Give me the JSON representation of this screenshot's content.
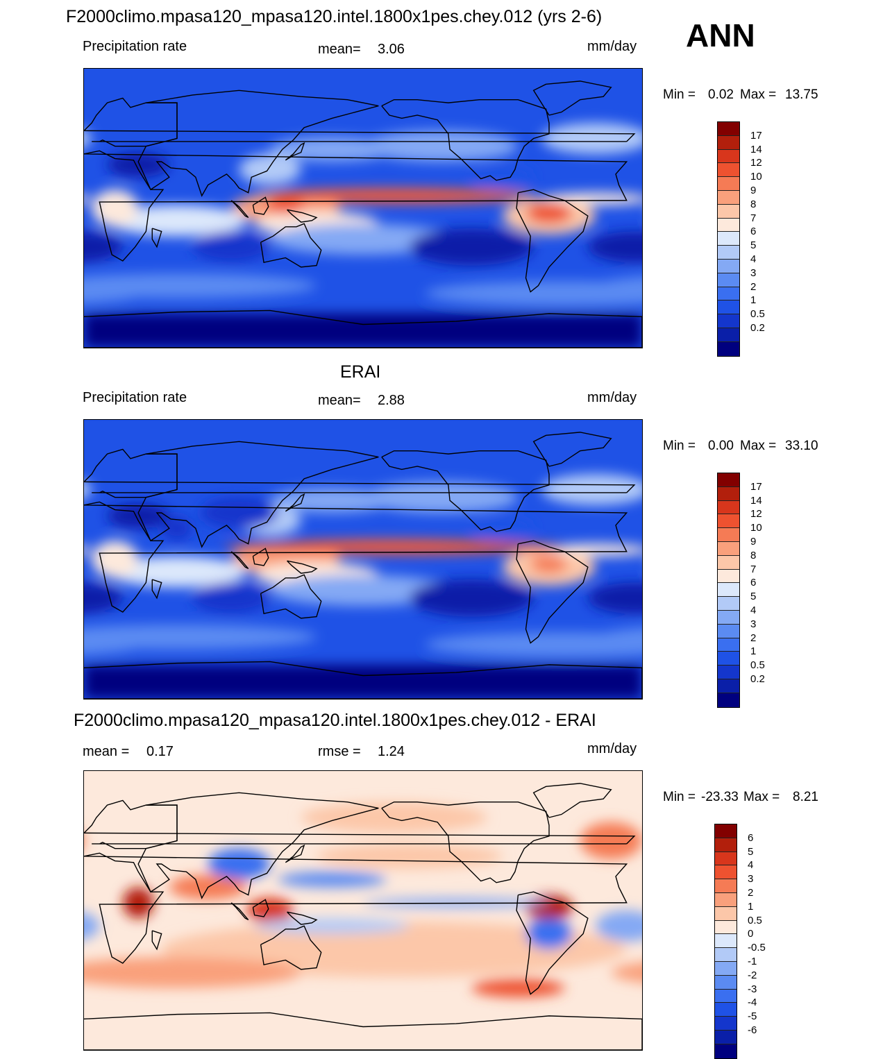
{
  "header": {
    "title": "F2000climo.mpasa120_mpasa120.intel.1800x1pes.chey.012 (yrs 2-6)",
    "season": "ANN"
  },
  "palettes": {
    "abs": [
      "#00007f",
      "#0a1fa8",
      "#1436cc",
      "#1f52e6",
      "#3a6ff0",
      "#5b8bf2",
      "#84a9f4",
      "#b2caf7",
      "#dce8fb",
      "#fde9dc",
      "#fcc7a9",
      "#f9a07c",
      "#f57b55",
      "#ee5230",
      "#d8361c",
      "#b21f0c",
      "#820000"
    ],
    "diff": [
      "#00007f",
      "#0a1fa8",
      "#1436cc",
      "#1f52e6",
      "#3a6ff0",
      "#5b8bf2",
      "#84a9f4",
      "#b2caf7",
      "#dce8fb",
      "#fde9dc",
      "#fcc7a9",
      "#f9a07c",
      "#f57b55",
      "#ee5230",
      "#d8361c",
      "#b21f0c",
      "#820000"
    ]
  },
  "panels": [
    {
      "id": "test",
      "title": "",
      "left_label": "Precipitation rate",
      "stat_label": "mean=",
      "stat_value": "3.06",
      "extra_label": "",
      "extra_value": "",
      "units": "mm/day",
      "min_label": "Min =",
      "min_value": "0.02",
      "max_label": "Max =",
      "max_value": "13.75",
      "palette": "abs",
      "levels": [
        "17",
        "14",
        "12",
        "10",
        "9",
        "8",
        "7",
        "6",
        "5",
        "4",
        "3",
        "2",
        "1",
        "0.5",
        "0.2"
      ]
    },
    {
      "id": "ref",
      "title": "ERAI",
      "left_label": "Precipitation rate",
      "stat_label": "mean=",
      "stat_value": "2.88",
      "extra_label": "",
      "extra_value": "",
      "units": "mm/day",
      "min_label": "Min =",
      "min_value": "0.00",
      "max_label": "Max =",
      "max_value": "33.10",
      "palette": "abs",
      "levels": [
        "17",
        "14",
        "12",
        "10",
        "9",
        "8",
        "7",
        "6",
        "5",
        "4",
        "3",
        "2",
        "1",
        "0.5",
        "0.2"
      ]
    },
    {
      "id": "diff",
      "title": "F2000climo.mpasa120_mpasa120.intel.1800x1pes.chey.012 - ERAI",
      "left_label": "mean =",
      "stat_label": "rmse =",
      "stat_value": "1.24",
      "extra_label": "",
      "extra_value": "0.17",
      "units": "mm/day",
      "min_label": "Min =",
      "min_value": "-23.33",
      "max_label": "Max =",
      "max_value": "8.21",
      "palette": "diff",
      "levels": [
        "6",
        "5",
        "4",
        "3",
        "2",
        "1",
        "0.5",
        "0",
        "-0.5",
        "-1",
        "-2",
        "-3",
        "-4",
        "-5",
        "-6"
      ]
    }
  ]
}
